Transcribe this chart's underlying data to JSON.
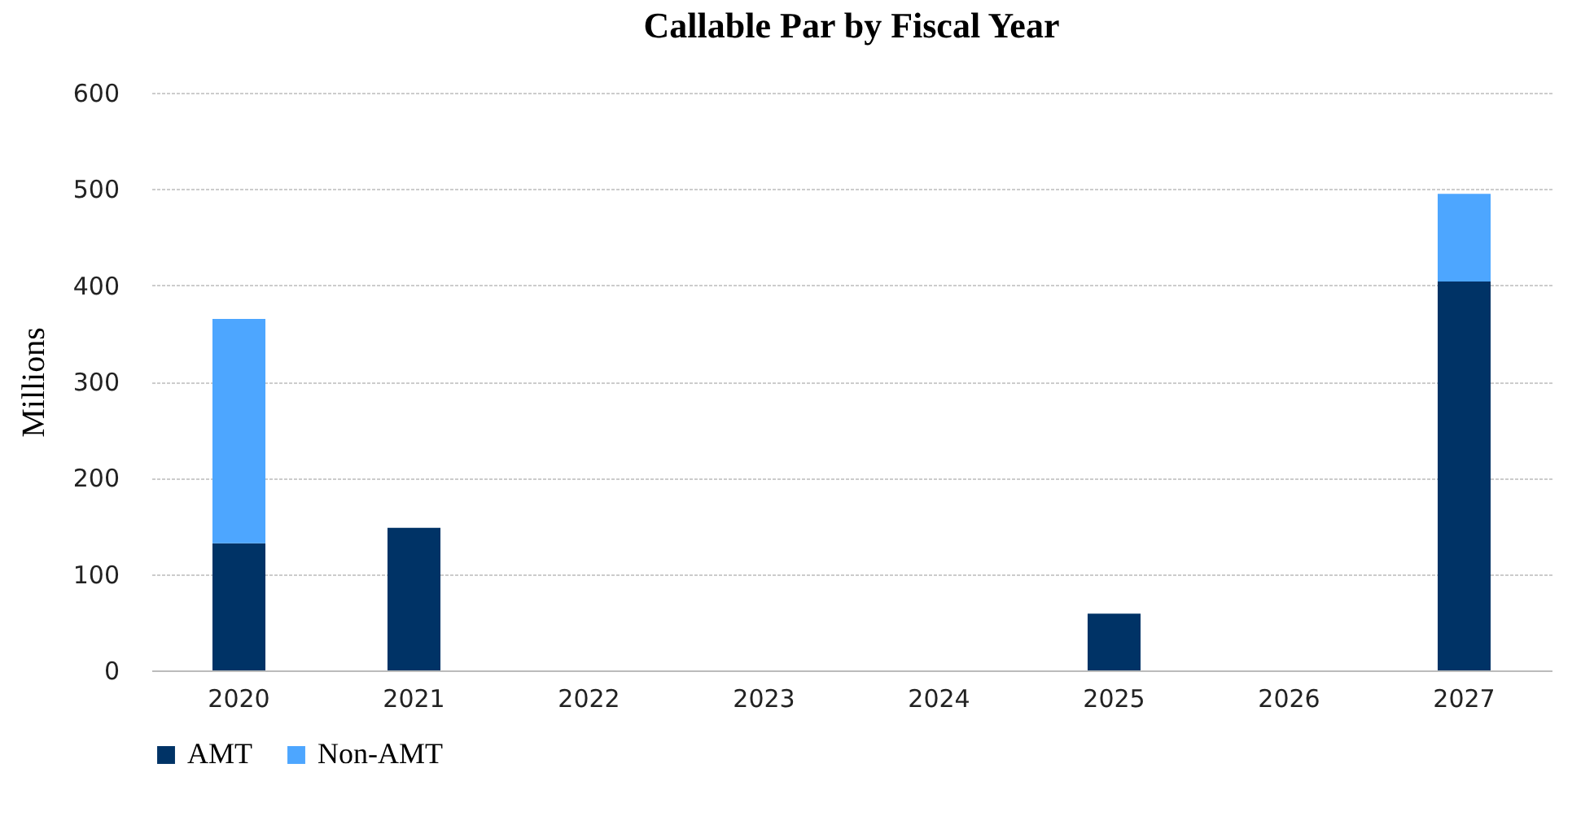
{
  "chart_data": {
    "type": "bar",
    "title": "Callable Par by Fiscal Year",
    "ylabel": "Millions",
    "stacked": true,
    "categories": [
      "2020",
      "2021",
      "2022",
      "2023",
      "2024",
      "2025",
      "2026",
      "2027"
    ],
    "series": [
      {
        "name": "AMT",
        "color": "#003366",
        "values": [
          132,
          148,
          null,
          null,
          null,
          59,
          null,
          404
        ]
      },
      {
        "name": "Non-AMT",
        "color": "#4da6ff",
        "values": [
          233,
          null,
          null,
          null,
          null,
          null,
          null,
          91
        ]
      }
    ],
    "ylim": [
      0,
      600
    ],
    "yticks": [
      0,
      100,
      200,
      300,
      400,
      500,
      600
    ],
    "grid": "y",
    "legend": "bottom"
  }
}
